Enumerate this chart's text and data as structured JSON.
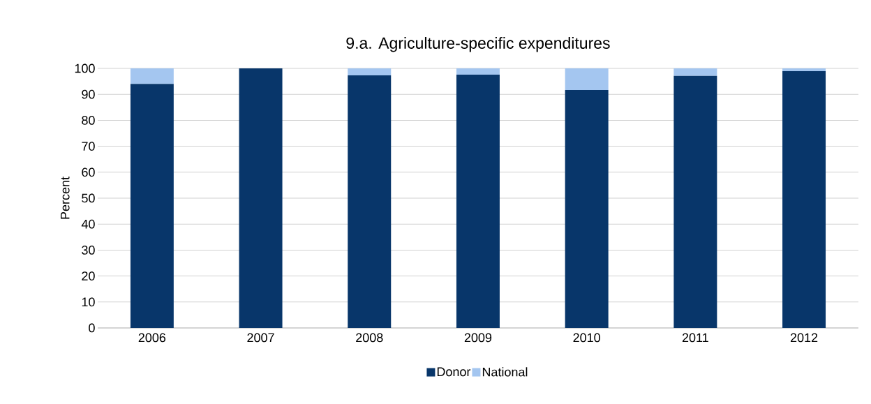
{
  "chart_data": {
    "type": "bar",
    "title": "9.a. Agriculture-specific expenditures",
    "ylabel": "Percent",
    "stacked": true,
    "categories": [
      "2006",
      "2007",
      "2008",
      "2009",
      "2010",
      "2011",
      "2012"
    ],
    "series": [
      {
        "name": "Donor",
        "color": "#08366a",
        "values": [
          94.0,
          100,
          97.3,
          97.6,
          91.7,
          97.1,
          98.9
        ]
      },
      {
        "name": "National",
        "color": "#a4c6f0",
        "values": [
          6.0,
          0,
          2.7,
          2.4,
          8.3,
          2.9,
          1.1
        ]
      }
    ],
    "ylim": [
      0,
      100
    ],
    "yticks": [
      0,
      10,
      20,
      30,
      40,
      50,
      60,
      70,
      80,
      90,
      100
    ],
    "grid": "y",
    "legend": "bottom"
  }
}
